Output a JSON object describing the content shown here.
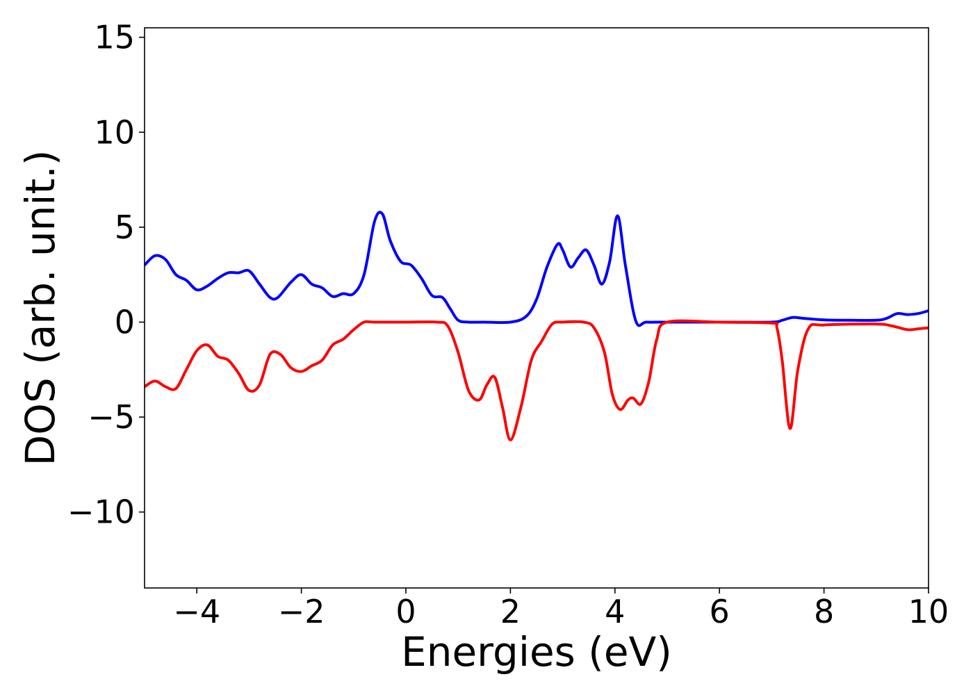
{
  "chart_data": {
    "type": "line",
    "xlabel": "Energies (eV)",
    "ylabel": "DOS (arb. unit.)",
    "xlim": [
      -5,
      10
    ],
    "ylim": [
      -14,
      15.5
    ],
    "grid": false,
    "xticks": [
      {
        "value": -4,
        "label": "−4"
      },
      {
        "value": -2,
        "label": "−2"
      },
      {
        "value": 0,
        "label": "0"
      },
      {
        "value": 2,
        "label": "2"
      },
      {
        "value": 4,
        "label": "4"
      },
      {
        "value": 6,
        "label": "6"
      },
      {
        "value": 8,
        "label": "8"
      },
      {
        "value": 10,
        "label": "10"
      }
    ],
    "yticks": [
      {
        "value": 15,
        "label": "15"
      },
      {
        "value": 10,
        "label": "10"
      },
      {
        "value": 5,
        "label": "5"
      },
      {
        "value": 0,
        "label": "0"
      },
      {
        "value": -5,
        "label": "−5"
      },
      {
        "value": -10,
        "label": "−10"
      }
    ],
    "series": [
      {
        "color": "#0000ff",
        "x": [
          -5.0,
          -4.8,
          -4.6,
          -4.4,
          -4.2,
          -4.0,
          -3.8,
          -3.6,
          -3.4,
          -3.2,
          -3.0,
          -2.8,
          -2.6,
          -2.45,
          -2.2,
          -2.0,
          -1.8,
          -1.6,
          -1.4,
          -1.2,
          -1.0,
          -0.8,
          -0.6,
          -0.45,
          -0.3,
          -0.1,
          0.1,
          0.3,
          0.5,
          0.7,
          0.85,
          1.0,
          1.2,
          1.5,
          2.0,
          2.3,
          2.5,
          2.7,
          2.9,
          3.0,
          3.15,
          3.3,
          3.45,
          3.6,
          3.75,
          3.9,
          4.05,
          4.2,
          4.4,
          4.6,
          5.0,
          6.0,
          7.0,
          7.2,
          7.4,
          7.6,
          8.0,
          8.5,
          9.0,
          9.2,
          9.4,
          9.6,
          9.8,
          10.0
        ],
        "y": [
          3.0,
          3.5,
          3.3,
          2.5,
          2.2,
          1.7,
          1.9,
          2.3,
          2.6,
          2.6,
          2.7,
          2.0,
          1.3,
          1.3,
          2.1,
          2.5,
          2.0,
          1.8,
          1.35,
          1.5,
          1.5,
          2.5,
          5.3,
          5.7,
          4.3,
          3.2,
          3.0,
          2.3,
          1.4,
          1.3,
          0.7,
          0.1,
          0.0,
          0.0,
          0.0,
          0.3,
          1.2,
          2.9,
          4.1,
          3.8,
          2.9,
          3.4,
          3.8,
          3.0,
          2.0,
          3.2,
          5.6,
          3.0,
          0.05,
          0.0,
          0.0,
          0.0,
          0.0,
          0.1,
          0.25,
          0.2,
          0.12,
          0.1,
          0.1,
          0.2,
          0.45,
          0.4,
          0.45,
          0.6
        ]
      },
      {
        "color": "#ff0000",
        "x": [
          -5.0,
          -4.8,
          -4.6,
          -4.4,
          -4.2,
          -4.0,
          -3.8,
          -3.6,
          -3.4,
          -3.2,
          -3.0,
          -2.8,
          -2.6,
          -2.4,
          -2.2,
          -2.0,
          -1.8,
          -1.6,
          -1.4,
          -1.2,
          -1.0,
          -0.8,
          -0.6,
          0.0,
          0.6,
          0.8,
          1.0,
          1.2,
          1.4,
          1.55,
          1.7,
          1.85,
          2.0,
          2.2,
          2.4,
          2.6,
          2.8,
          3.0,
          3.4,
          3.6,
          3.8,
          3.95,
          4.1,
          4.25,
          4.35,
          4.5,
          4.65,
          4.8,
          5.0,
          6.0,
          7.0,
          7.1,
          7.2,
          7.35,
          7.5,
          7.7,
          8.0,
          9.0,
          9.3,
          9.6,
          9.8,
          10.0
        ],
        "y": [
          -3.4,
          -3.1,
          -3.4,
          -3.5,
          -2.5,
          -1.5,
          -1.2,
          -1.8,
          -2.0,
          -2.7,
          -3.6,
          -3.3,
          -1.7,
          -1.7,
          -2.4,
          -2.6,
          -2.3,
          -2.0,
          -1.2,
          -0.9,
          -0.4,
          0.0,
          0.0,
          0.0,
          0.0,
          -0.2,
          -1.6,
          -3.6,
          -4.1,
          -3.3,
          -2.9,
          -4.5,
          -6.2,
          -4.5,
          -2.0,
          -1.0,
          -0.1,
          0.0,
          0.0,
          -0.3,
          -1.6,
          -3.8,
          -4.6,
          -4.1,
          -4.0,
          -4.3,
          -3.1,
          -0.9,
          0.0,
          0.0,
          -0.05,
          -0.3,
          -2.0,
          -5.6,
          -2.5,
          -0.35,
          -0.15,
          -0.1,
          -0.2,
          -0.4,
          -0.35,
          -0.3
        ]
      }
    ]
  }
}
